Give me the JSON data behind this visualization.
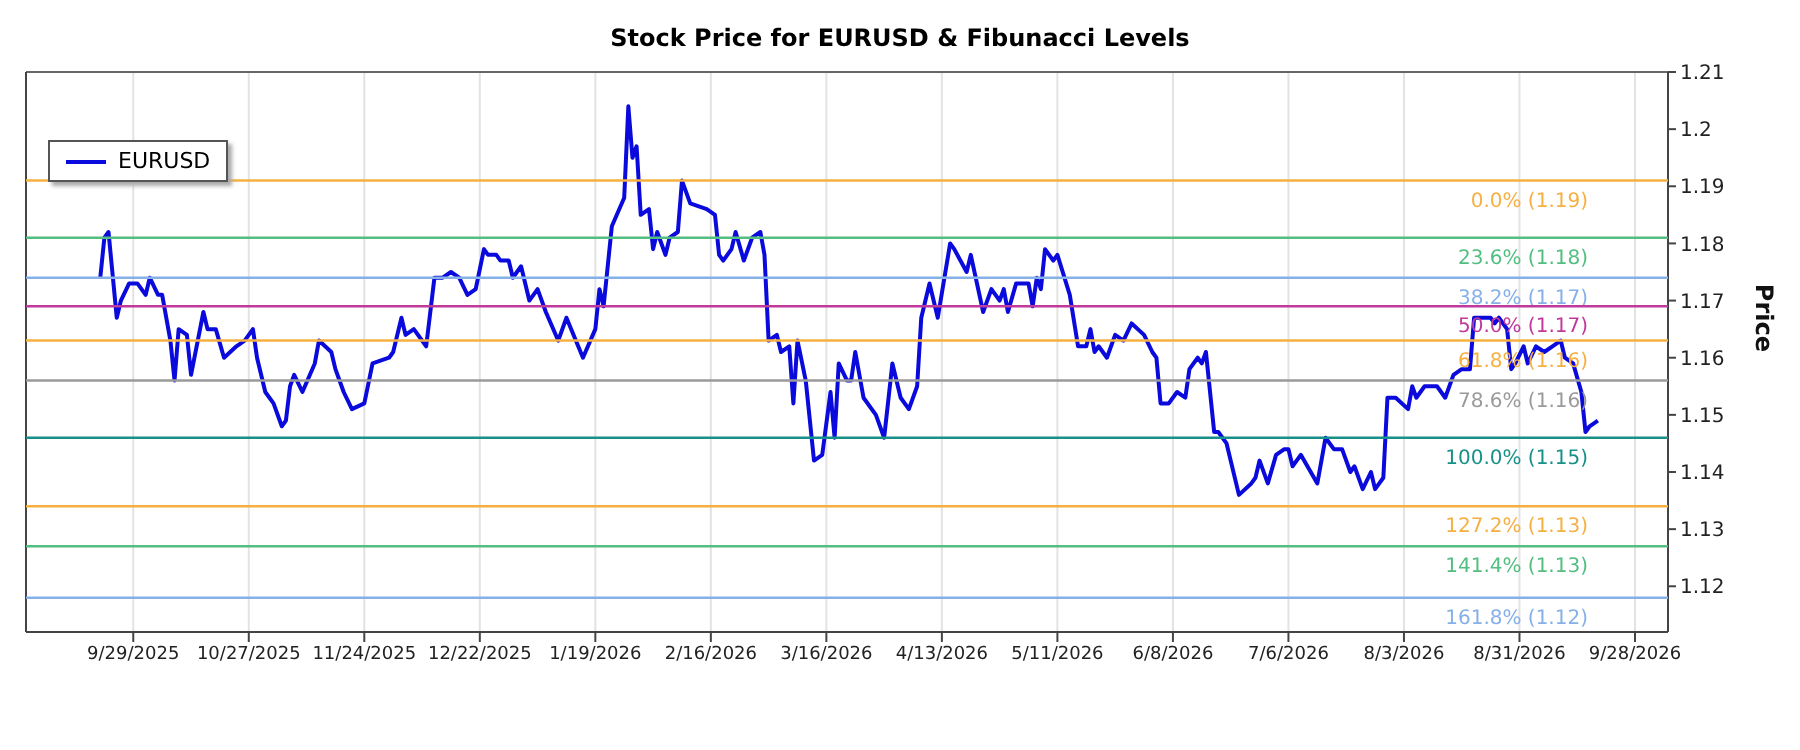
{
  "chart_data": {
    "type": "line",
    "title": "Stock Price for EURUSD & Fibunacci Levels",
    "ylabel": "Price",
    "x": [
      "2025-09-21",
      "2025-09-22",
      "2025-09-23",
      "2025-09-25",
      "2025-09-26",
      "2025-09-28",
      "2025-09-30",
      "2025-10-02",
      "2025-10-03",
      "2025-10-05",
      "2025-10-06",
      "2025-10-08",
      "2025-10-09",
      "2025-10-10",
      "2025-10-12",
      "2025-10-13",
      "2025-10-16",
      "2025-10-17",
      "2025-10-19",
      "2025-10-21",
      "2025-10-24",
      "2025-10-26",
      "2025-10-28",
      "2025-10-29",
      "2025-10-31",
      "2025-11-02",
      "2025-11-04",
      "2025-11-05",
      "2025-11-06",
      "2025-11-07",
      "2025-11-09",
      "2025-11-12",
      "2025-11-13",
      "2025-11-16",
      "2025-11-17",
      "2025-11-19",
      "2025-11-21",
      "2025-11-24",
      "2025-11-26",
      "2025-11-30",
      "2025-12-01",
      "2025-12-03",
      "2025-12-04",
      "2025-12-06",
      "2025-12-09",
      "2025-12-11",
      "2025-12-13",
      "2025-12-15",
      "2025-12-17",
      "2025-12-19",
      "2025-12-21",
      "2025-12-23",
      "2025-12-24",
      "2025-12-26",
      "2025-12-27",
      "2025-12-29",
      "2025-12-30",
      "2026-01-01",
      "2026-01-03",
      "2026-01-05",
      "2026-01-07",
      "2026-01-10",
      "2026-01-12",
      "2026-01-16",
      "2026-01-19",
      "2026-01-20",
      "2026-01-21",
      "2026-01-23",
      "2026-01-26",
      "2026-01-27",
      "2026-01-28",
      "2026-01-29",
      "2026-01-30",
      "2026-02-01",
      "2026-02-02",
      "2026-02-03",
      "2026-02-05",
      "2026-02-06",
      "2026-02-08",
      "2026-02-09",
      "2026-02-11",
      "2026-02-15",
      "2026-02-17",
      "2026-02-18",
      "2026-02-19",
      "2026-02-21",
      "2026-02-22",
      "2026-02-24",
      "2026-02-26",
      "2026-02-28",
      "2026-03-01",
      "2026-03-02",
      "2026-03-04",
      "2026-03-05",
      "2026-03-07",
      "2026-03-08",
      "2026-03-09",
      "2026-03-11",
      "2026-03-13",
      "2026-03-15",
      "2026-03-17",
      "2026-03-18",
      "2026-03-19",
      "2026-03-21",
      "2026-03-22",
      "2026-03-23",
      "2026-03-25",
      "2026-03-28",
      "2026-03-30",
      "2026-04-01",
      "2026-04-03",
      "2026-04-05",
      "2026-04-07",
      "2026-04-08",
      "2026-04-10",
      "2026-04-12",
      "2026-04-15",
      "2026-04-16",
      "2026-04-19",
      "2026-04-20",
      "2026-04-23",
      "2026-04-25",
      "2026-04-27",
      "2026-04-28",
      "2026-04-29",
      "2026-05-01",
      "2026-05-03",
      "2026-05-04",
      "2026-05-05",
      "2026-05-06",
      "2026-05-07",
      "2026-05-08",
      "2026-05-10",
      "2026-05-11",
      "2026-05-14",
      "2026-05-16",
      "2026-05-18",
      "2026-05-19",
      "2026-05-20",
      "2026-05-21",
      "2026-05-23",
      "2026-05-25",
      "2026-05-27",
      "2026-05-29",
      "2026-06-01",
      "2026-06-03",
      "2026-06-04",
      "2026-06-05",
      "2026-06-07",
      "2026-06-09",
      "2026-06-11",
      "2026-06-12",
      "2026-06-14",
      "2026-06-15",
      "2026-06-16",
      "2026-06-18",
      "2026-06-19",
      "2026-06-21",
      "2026-06-24",
      "2026-06-27",
      "2026-06-28",
      "2026-06-29",
      "2026-07-01",
      "2026-07-03",
      "2026-07-05",
      "2026-07-06",
      "2026-07-07",
      "2026-07-09",
      "2026-07-13",
      "2026-07-15",
      "2026-07-17",
      "2026-07-19",
      "2026-07-21",
      "2026-07-22",
      "2026-07-24",
      "2026-07-26",
      "2026-07-27",
      "2026-07-29",
      "2026-07-30",
      "2026-08-01",
      "2026-08-04",
      "2026-08-05",
      "2026-08-06",
      "2026-08-08",
      "2026-08-11",
      "2026-08-13",
      "2026-08-15",
      "2026-08-17",
      "2026-08-19",
      "2026-08-20",
      "2026-08-24",
      "2026-08-25",
      "2026-08-26",
      "2026-08-28",
      "2026-08-29",
      "2026-08-30",
      "2026-09-01",
      "2026-09-02",
      "2026-09-04",
      "2026-09-06",
      "2026-09-08",
      "2026-09-10",
      "2026-09-11",
      "2026-09-13",
      "2026-09-15",
      "2026-09-16",
      "2026-09-17",
      "2026-09-19"
    ],
    "series": [
      {
        "name": "EURUSD",
        "color": "#0a0adc",
        "values": [
          1.174,
          1.181,
          1.182,
          1.167,
          1.17,
          1.173,
          1.173,
          1.171,
          1.174,
          1.171,
          1.171,
          1.163,
          1.156,
          1.165,
          1.164,
          1.157,
          1.168,
          1.165,
          1.165,
          1.16,
          1.162,
          1.163,
          1.165,
          1.16,
          1.154,
          1.152,
          1.148,
          1.149,
          1.155,
          1.157,
          1.154,
          1.159,
          1.163,
          1.161,
          1.158,
          1.154,
          1.151,
          1.152,
          1.159,
          1.16,
          1.161,
          1.167,
          1.164,
          1.165,
          1.162,
          1.174,
          1.174,
          1.175,
          1.174,
          1.171,
          1.172,
          1.179,
          1.178,
          1.178,
          1.177,
          1.177,
          1.174,
          1.176,
          1.17,
          1.172,
          1.168,
          1.163,
          1.167,
          1.16,
          1.165,
          1.172,
          1.169,
          1.183,
          1.188,
          1.204,
          1.195,
          1.197,
          1.185,
          1.186,
          1.179,
          1.182,
          1.178,
          1.181,
          1.182,
          1.191,
          1.187,
          1.186,
          1.185,
          1.178,
          1.177,
          1.179,
          1.182,
          1.177,
          1.181,
          1.182,
          1.178,
          1.163,
          1.164,
          1.161,
          1.162,
          1.152,
          1.163,
          1.156,
          1.142,
          1.143,
          1.154,
          1.146,
          1.159,
          1.156,
          1.156,
          1.161,
          1.153,
          1.15,
          1.146,
          1.159,
          1.153,
          1.151,
          1.155,
          1.167,
          1.173,
          1.167,
          1.18,
          1.179,
          1.175,
          1.178,
          1.168,
          1.172,
          1.17,
          1.172,
          1.168,
          1.173,
          1.173,
          1.173,
          1.169,
          1.174,
          1.172,
          1.179,
          1.177,
          1.178,
          1.171,
          1.162,
          1.162,
          1.165,
          1.161,
          1.162,
          1.16,
          1.164,
          1.163,
          1.166,
          1.164,
          1.161,
          1.16,
          1.152,
          1.152,
          1.154,
          1.153,
          1.158,
          1.16,
          1.159,
          1.161,
          1.147,
          1.147,
          1.145,
          1.136,
          1.138,
          1.139,
          1.142,
          1.138,
          1.143,
          1.144,
          1.144,
          1.141,
          1.143,
          1.138,
          1.146,
          1.144,
          1.144,
          1.14,
          1.141,
          1.137,
          1.14,
          1.137,
          1.139,
          1.153,
          1.153,
          1.151,
          1.155,
          1.153,
          1.155,
          1.155,
          1.153,
          1.157,
          1.158,
          1.158,
          1.167,
          1.167,
          1.166,
          1.167,
          1.165,
          1.158,
          1.159,
          1.162,
          1.159,
          1.162,
          1.161,
          1.162,
          1.163,
          1.16,
          1.159,
          1.154,
          1.147,
          1.148,
          1.149
        ]
      }
    ],
    "xlim": [
      "2025-09-03",
      "2026-10-06"
    ],
    "xticks": [
      {
        "value": "2025-09-29",
        "label": "9/29/2025"
      },
      {
        "value": "2025-10-27",
        "label": "10/27/2025"
      },
      {
        "value": "2025-11-24",
        "label": "11/24/2025"
      },
      {
        "value": "2025-12-22",
        "label": "12/22/2025"
      },
      {
        "value": "2026-01-19",
        "label": "1/19/2026"
      },
      {
        "value": "2026-02-16",
        "label": "2/16/2026"
      },
      {
        "value": "2026-03-16",
        "label": "3/16/2026"
      },
      {
        "value": "2026-04-13",
        "label": "4/13/2026"
      },
      {
        "value": "2026-05-11",
        "label": "5/11/2026"
      },
      {
        "value": "2026-06-08",
        "label": "6/8/2026"
      },
      {
        "value": "2026-07-06",
        "label": "7/6/2026"
      },
      {
        "value": "2026-08-03",
        "label": "8/3/2026"
      },
      {
        "value": "2026-08-31",
        "label": "8/31/2026"
      },
      {
        "value": "2026-09-28",
        "label": "9/28/2026"
      }
    ],
    "ylim": [
      1.112,
      1.21
    ],
    "yticks": [
      1.12,
      1.13,
      1.14,
      1.15,
      1.16,
      1.17,
      1.18,
      1.19,
      1.2,
      1.21
    ],
    "grid": "x",
    "legend": "top left",
    "ref_lines": [
      {
        "axis": "y",
        "value": 1.191,
        "label": "0.0% (1.19)",
        "color": "#f5b041"
      },
      {
        "axis": "y",
        "value": 1.181,
        "label": "23.6% (1.18)",
        "color": "#52be80"
      },
      {
        "axis": "y",
        "value": 1.174,
        "label": "38.2% (1.17)",
        "color": "#85b0e8"
      },
      {
        "axis": "y",
        "value": 1.169,
        "label": "50.0% (1.17)",
        "color": "#c0399b"
      },
      {
        "axis": "y",
        "value": 1.163,
        "label": "61.8% (1.16)",
        "color": "#f5b041"
      },
      {
        "axis": "y",
        "value": 1.156,
        "label": "78.6% (1.16)",
        "color": "#9a9a9a"
      },
      {
        "axis": "y",
        "value": 1.146,
        "label": "100.0% (1.15)",
        "color": "#17908a"
      },
      {
        "axis": "y",
        "value": 1.134,
        "label": "127.2% (1.13)",
        "color": "#f5b041"
      },
      {
        "axis": "y",
        "value": 1.127,
        "label": "141.4% (1.13)",
        "color": "#52be80"
      },
      {
        "axis": "y",
        "value": 1.118,
        "label": "161.8% (1.12)",
        "color": "#85b0e8"
      }
    ]
  }
}
